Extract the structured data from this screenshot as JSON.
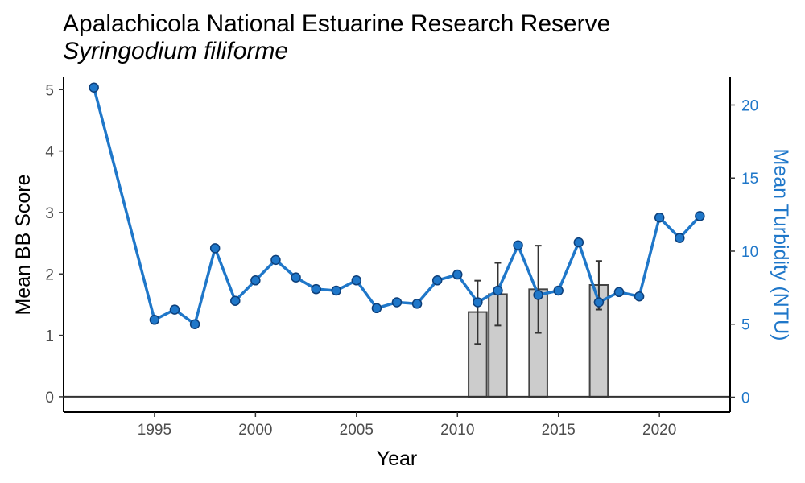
{
  "chart_data": {
    "type": "bar",
    "title": "Apalachicola National Estuarine Research Reserve",
    "subtitle": "Syringodium filiforme",
    "xlabel": "Year",
    "ylabel": "Mean BB Score",
    "y2label": "Mean Turbidity (NTU)",
    "xlim": [
      1990.5,
      2023.5
    ],
    "ylim": [
      -0.25,
      5.2
    ],
    "y2lim": [
      -1.02,
      21.9
    ],
    "xticks": [
      1995,
      2000,
      2005,
      2010,
      2015,
      2020
    ],
    "yticks": [
      0,
      1,
      2,
      3,
      4,
      5
    ],
    "y2ticks": [
      0,
      5,
      10,
      15,
      20
    ],
    "bars": {
      "name": "Mean BB Score",
      "x": [
        2011,
        2012,
        2014,
        2017
      ],
      "values": [
        1.38,
        1.67,
        1.75,
        1.82
      ],
      "error_low": [
        0.86,
        1.16,
        1.04,
        1.42
      ],
      "error_high": [
        1.89,
        2.18,
        2.46,
        2.21
      ],
      "color": "#cccccc",
      "edge_color": "#444444"
    },
    "series": [
      {
        "name": "Mean Turbidity (NTU)",
        "axis": "right",
        "color": "#1f77c9",
        "x": [
          1992,
          1995,
          1996,
          1997,
          1998,
          1999,
          2000,
          2001,
          2002,
          2003,
          2004,
          2005,
          2006,
          2007,
          2008,
          2009,
          2010,
          2011,
          2012,
          2013,
          2014,
          2015,
          2016,
          2017,
          2018,
          2019,
          2020,
          2021,
          2022
        ],
        "values": [
          21.2,
          5.3,
          6.0,
          5.0,
          10.2,
          6.6,
          8.0,
          9.4,
          8.2,
          7.4,
          7.3,
          8.0,
          6.1,
          6.5,
          6.4,
          8.0,
          8.4,
          6.5,
          7.3,
          10.4,
          7.0,
          7.3,
          10.6,
          6.5,
          7.2,
          6.9,
          12.3,
          10.9,
          12.4
        ]
      }
    ]
  }
}
